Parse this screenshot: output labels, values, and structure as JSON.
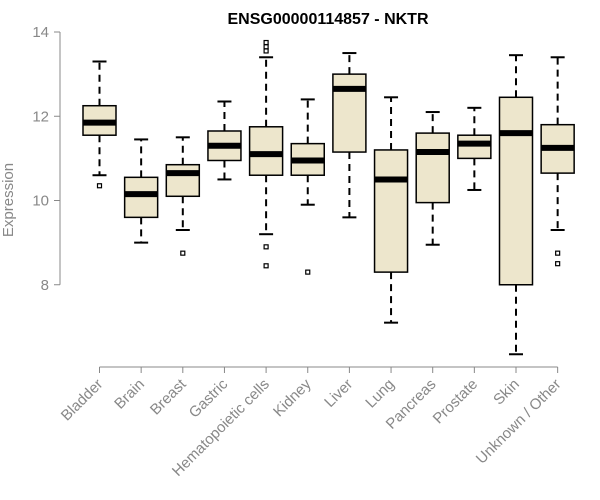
{
  "chart_data": {
    "type": "boxplot",
    "title": "ENSG00000114857 - NKTR",
    "xlabel": "",
    "ylabel": "Expression",
    "ylim": [
      6.0,
      14.0
    ],
    "yticks": [
      8,
      10,
      12,
      14
    ],
    "box_fill": "#ede6cc",
    "categories": [
      "Bladder",
      "Brain",
      "Breast",
      "Gastric",
      "Hematopoietic cells",
      "Kidney",
      "Liver",
      "Lung",
      "Pancreas",
      "Prostate",
      "Skin",
      "Unknown / Other"
    ],
    "boxes": [
      {
        "category": "Bladder",
        "whisker_low": 10.6,
        "q1": 11.55,
        "median": 11.85,
        "q3": 12.25,
        "whisker_high": 13.3,
        "outliers": [
          10.35
        ]
      },
      {
        "category": "Brain",
        "whisker_low": 9.0,
        "q1": 9.6,
        "median": 10.15,
        "q3": 10.55,
        "whisker_high": 11.45,
        "outliers": []
      },
      {
        "category": "Breast",
        "whisker_low": 9.3,
        "q1": 10.1,
        "median": 10.65,
        "q3": 10.85,
        "whisker_high": 11.5,
        "outliers": [
          8.75
        ]
      },
      {
        "category": "Gastric",
        "whisker_low": 10.5,
        "q1": 10.95,
        "median": 11.3,
        "q3": 11.65,
        "whisker_high": 12.35,
        "outliers": []
      },
      {
        "category": "Hematopoietic cells",
        "whisker_low": 9.2,
        "q1": 10.6,
        "median": 11.1,
        "q3": 11.75,
        "whisker_high": 13.4,
        "outliers": [
          8.45,
          8.9,
          13.55,
          13.65,
          13.75
        ]
      },
      {
        "category": "Kidney",
        "whisker_low": 9.9,
        "q1": 10.6,
        "median": 10.95,
        "q3": 11.35,
        "whisker_high": 12.4,
        "outliers": [
          8.3
        ]
      },
      {
        "category": "Liver",
        "whisker_low": 9.6,
        "q1": 11.15,
        "median": 12.65,
        "q3": 13.0,
        "whisker_high": 13.5,
        "outliers": []
      },
      {
        "category": "Lung",
        "whisker_low": 7.1,
        "q1": 8.3,
        "median": 10.5,
        "q3": 11.2,
        "whisker_high": 12.45,
        "outliers": []
      },
      {
        "category": "Pancreas",
        "whisker_low": 8.95,
        "q1": 9.95,
        "median": 11.15,
        "q3": 11.6,
        "whisker_high": 12.1,
        "outliers": []
      },
      {
        "category": "Prostate",
        "whisker_low": 10.25,
        "q1": 11.0,
        "median": 11.35,
        "q3": 11.55,
        "whisker_high": 12.2,
        "outliers": []
      },
      {
        "category": "Skin",
        "whisker_low": 6.35,
        "q1": 8.0,
        "median": 11.6,
        "q3": 12.45,
        "whisker_high": 13.45,
        "outliers": []
      },
      {
        "category": "Unknown / Other",
        "whisker_low": 9.3,
        "q1": 10.65,
        "median": 11.25,
        "q3": 11.8,
        "whisker_high": 13.4,
        "outliers": [
          8.5,
          8.75
        ]
      }
    ]
  }
}
